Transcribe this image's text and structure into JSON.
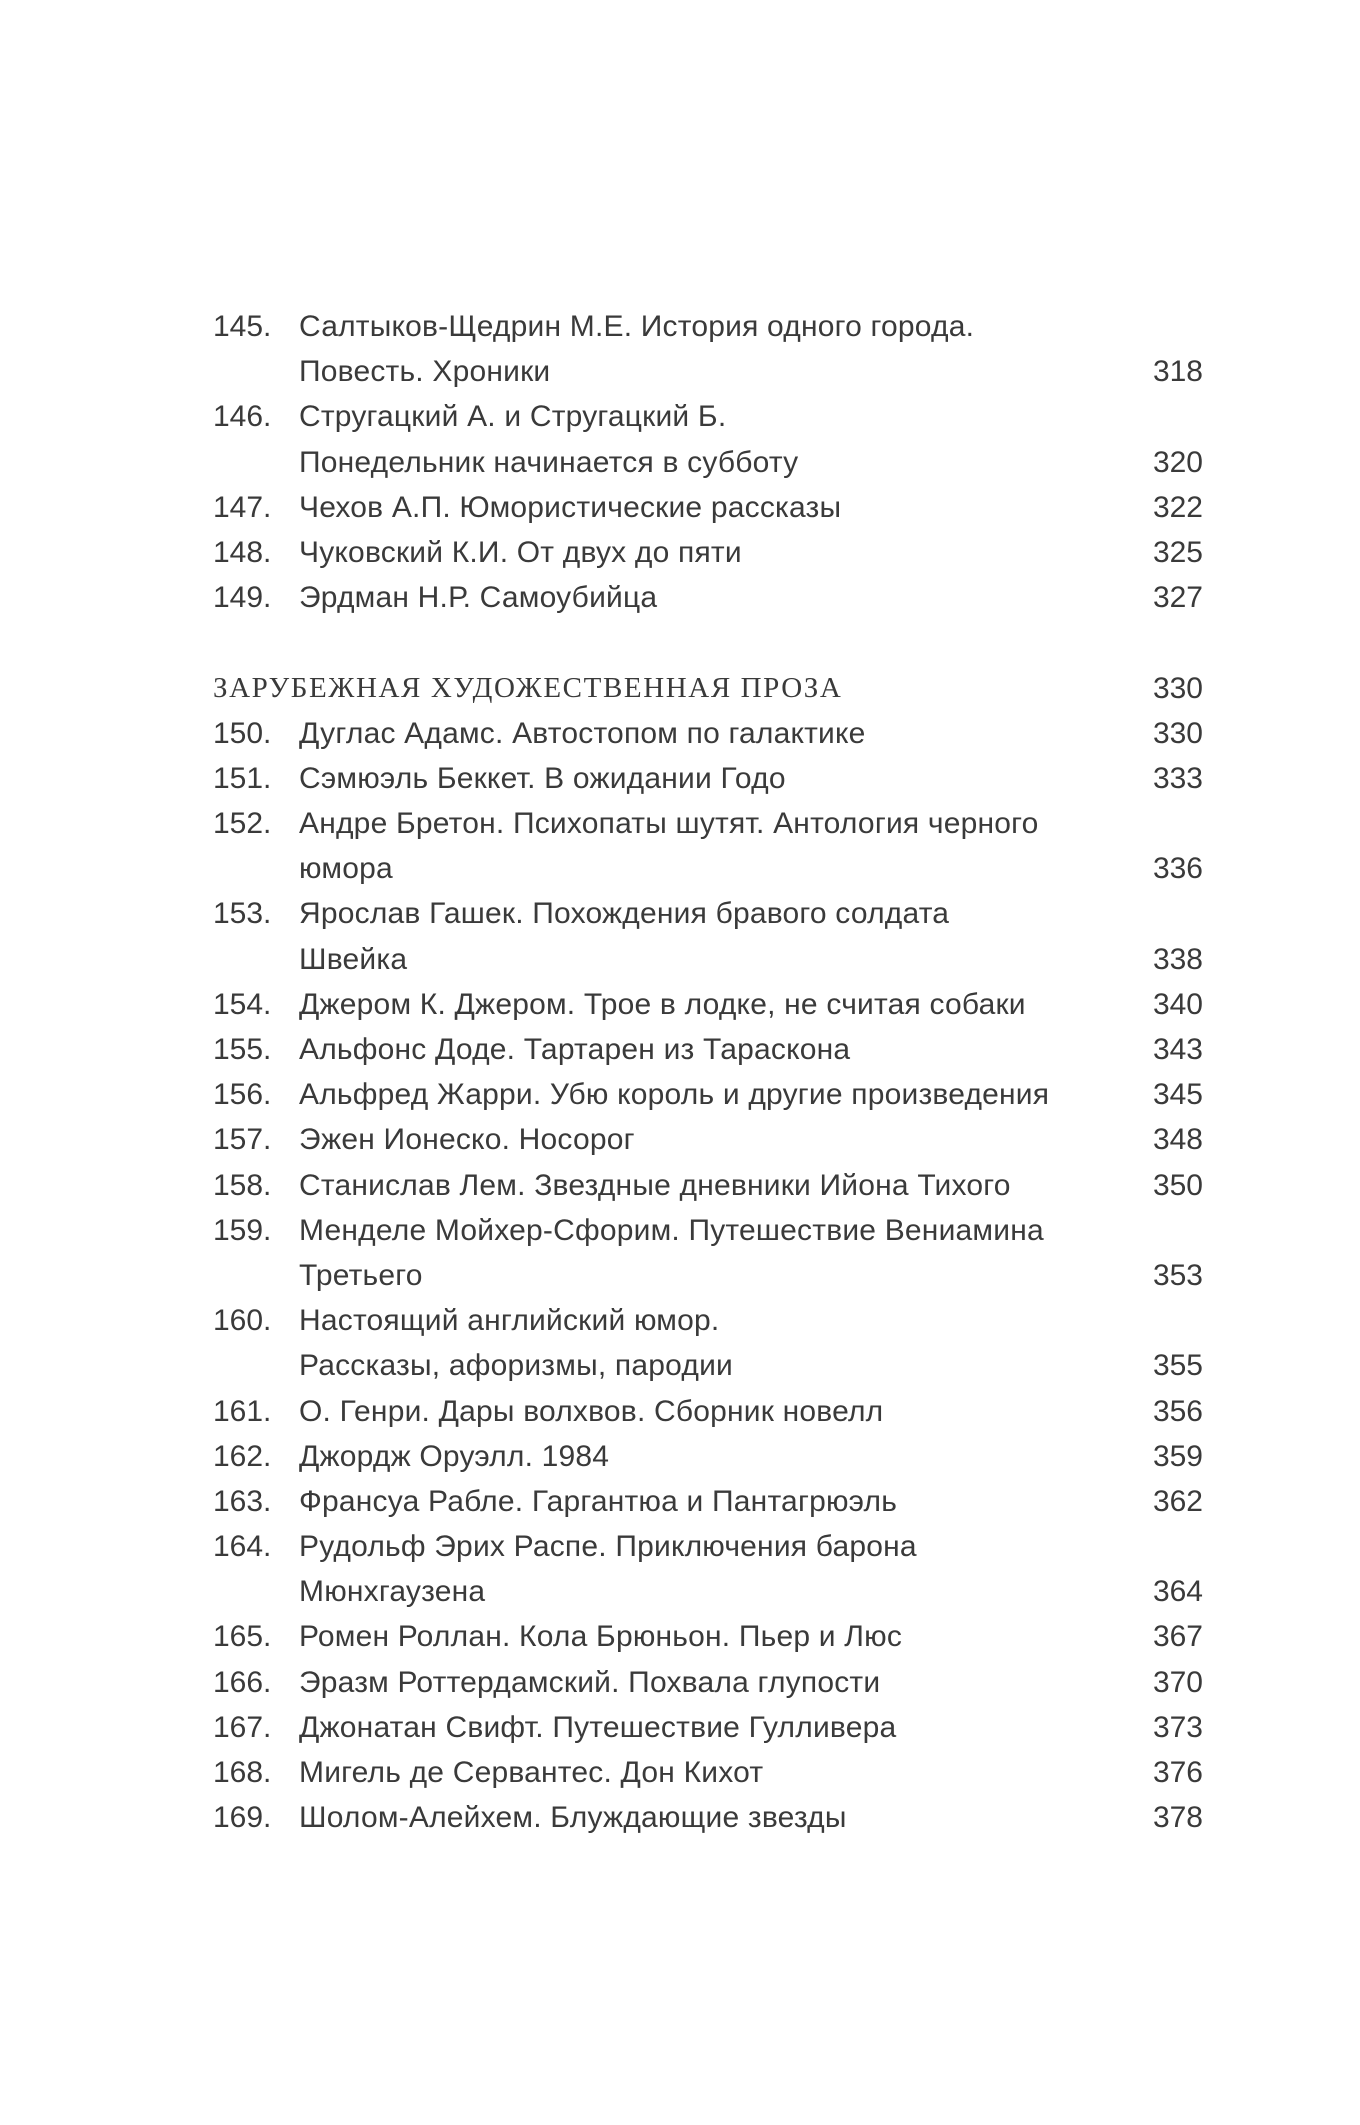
{
  "groups": [
    {
      "entries": [
        {
          "num": "145.",
          "lines": [
            "Салтыков-Щедрин М.Е. История одного города.",
            "Повесть. Хроники"
          ],
          "page": "318"
        },
        {
          "num": "146.",
          "lines": [
            "Стругацкий А. и Стругацкий Б.",
            "Понедельник начинается в субботу"
          ],
          "page": "320"
        },
        {
          "num": "147.",
          "lines": [
            "Чехов А.П. Юмористические рассказы"
          ],
          "page": "322"
        },
        {
          "num": "148.",
          "lines": [
            "Чуковский К.И. От двух до пяти"
          ],
          "page": "325"
        },
        {
          "num": "149.",
          "lines": [
            "Эрдман Н.Р. Самоубийца"
          ],
          "page": "327"
        }
      ]
    },
    {
      "section": {
        "title": "ЗАРУБЕЖНАЯ ХУДОЖЕСТВЕННАЯ ПРОЗА",
        "page": "330"
      },
      "entries": [
        {
          "num": "150.",
          "lines": [
            "Дуглас Адамс. Автостопом по галактике"
          ],
          "page": "330"
        },
        {
          "num": "151.",
          "lines": [
            "Сэмюэль Беккет. В ожидании Годо"
          ],
          "page": "333"
        },
        {
          "num": "152.",
          "lines": [
            "Андре Бретон. Психопаты шутят. Антология черного",
            "юмора"
          ],
          "page": "336"
        },
        {
          "num": "153.",
          "lines": [
            "Ярослав Гашек. Похождения бравого солдата",
            "Швейка"
          ],
          "page": "338"
        },
        {
          "num": "154.",
          "lines": [
            "Джером К. Джером. Трое в лодке, не считая собаки"
          ],
          "page": "340"
        },
        {
          "num": "155.",
          "lines": [
            "Альфонс Доде. Тартарен из Тараскона"
          ],
          "page": "343"
        },
        {
          "num": "156.",
          "lines": [
            "Альфред Жарри. Убю король и другие произведения"
          ],
          "page": "345"
        },
        {
          "num": "157.",
          "lines": [
            "Эжен Ионеско. Носорог"
          ],
          "page": "348"
        },
        {
          "num": "158.",
          "lines": [
            "Станислав Лем. Звездные дневники Ийона Тихого"
          ],
          "page": "350"
        },
        {
          "num": "159.",
          "lines": [
            "Менделе Мойхер-Сфорим. Путешествие Вениамина",
            "Третьего"
          ],
          "page": "353"
        },
        {
          "num": "160.",
          "lines": [
            "Настоящий английский юмор.",
            "Рассказы, афоризмы, пародии"
          ],
          "page": "355"
        },
        {
          "num": "161.",
          "lines": [
            "О. Генри. Дары волхвов. Сборник новелл"
          ],
          "page": "356"
        },
        {
          "num": "162.",
          "lines": [
            "Джордж Оруэлл. 1984"
          ],
          "page": "359"
        },
        {
          "num": "163.",
          "lines": [
            "Франсуа Рабле. Гаргантюа и Пантагрюэль"
          ],
          "page": "362"
        },
        {
          "num": "164.",
          "lines": [
            "Рудольф Эрих Распе. Приключения барона",
            "Мюнхгаузена"
          ],
          "page": "364"
        },
        {
          "num": "165.",
          "lines": [
            "Ромен Роллан. Кола Брюньон. Пьер и Люс"
          ],
          "page": "367"
        },
        {
          "num": "166.",
          "lines": [
            "Эразм Роттердамский. Похвала глупости"
          ],
          "page": "370"
        },
        {
          "num": "167.",
          "lines": [
            "Джонатан Свифт. Путешествие Гулливера"
          ],
          "page": "373"
        },
        {
          "num": "168.",
          "lines": [
            "Мигель де Сервантес. Дон Кихот"
          ],
          "page": "376"
        },
        {
          "num": "169.",
          "lines": [
            "Шолом-Алейхем. Блуждающие звезды"
          ],
          "page": "378"
        }
      ]
    }
  ]
}
